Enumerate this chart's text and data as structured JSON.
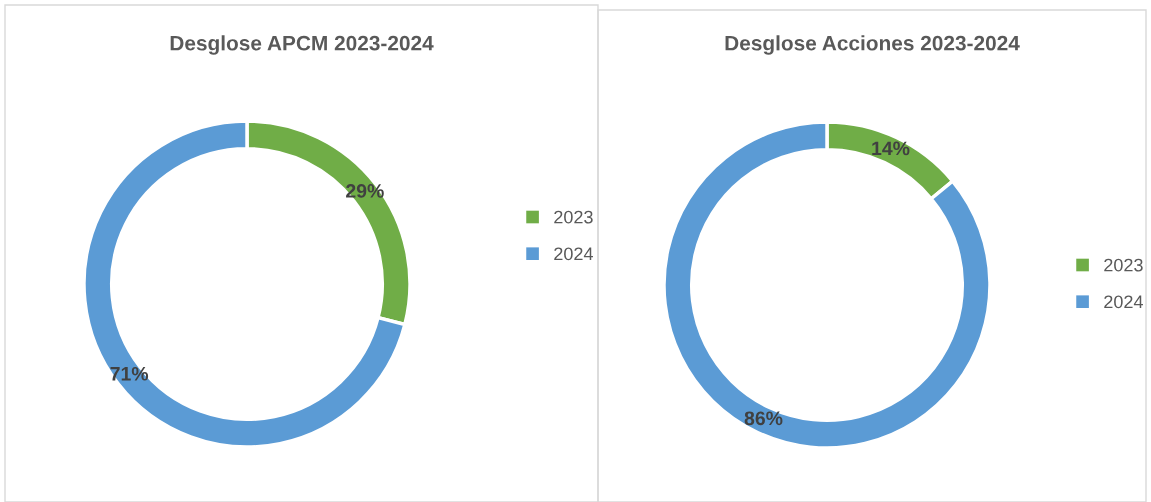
{
  "chart_data": [
    {
      "type": "donut",
      "title": "Desglose APCM 2023-2024",
      "categories": [
        "2023",
        "2024"
      ],
      "values": [
        29,
        71
      ],
      "colors": [
        "#70ad47",
        "#5b9bd5"
      ],
      "value_labels": [
        "29%",
        "71%"
      ],
      "legend": "right"
    },
    {
      "type": "donut",
      "title": "Desglose Acciones 2023-2024",
      "categories": [
        "2023",
        "2024"
      ],
      "values": [
        14,
        86
      ],
      "colors": [
        "#70ad47",
        "#5b9bd5"
      ],
      "value_labels": [
        "14%",
        "86%"
      ],
      "legend": "right"
    }
  ]
}
